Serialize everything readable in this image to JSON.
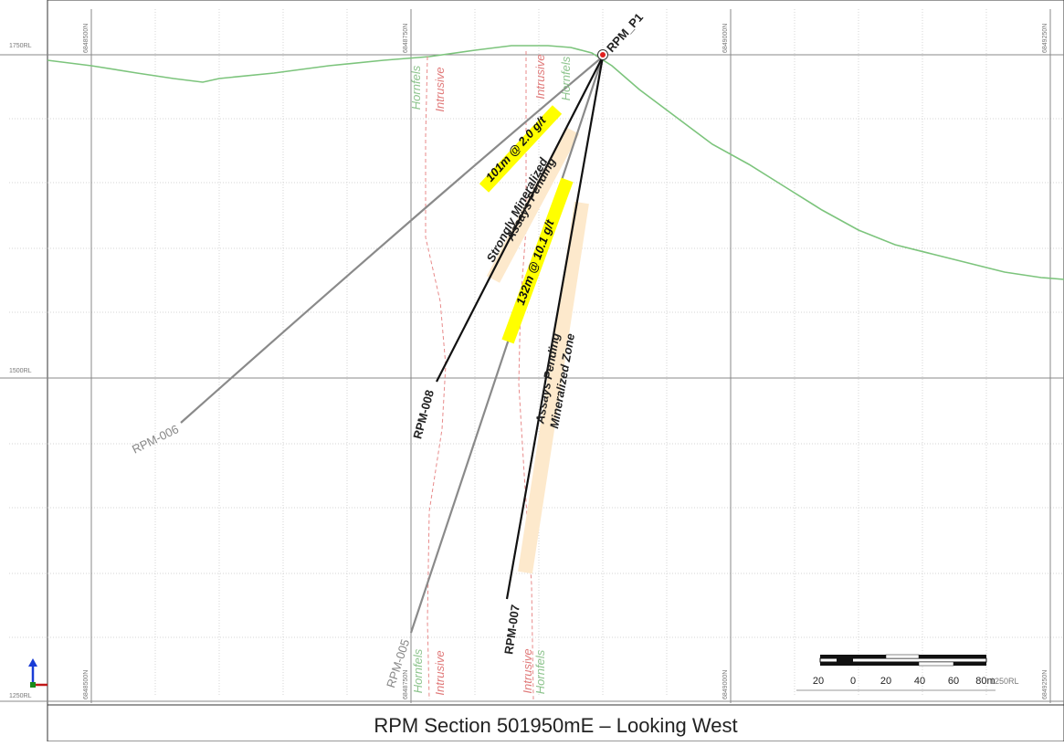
{
  "caption": "RPM Section 501950mE – Looking West",
  "elevation_labels": {
    "top": "1750RL",
    "mid": "1500RL",
    "bottom": "1250RL"
  },
  "northing_labels": [
    "6848500N",
    "6848750N",
    "6849000N",
    "6849250N"
  ],
  "collar": "RPM_P1",
  "holes": {
    "rpm_006": "RPM-006",
    "rpm_008": "RPM-008",
    "rpm_007": "RPM-007",
    "rpm_005": "RPM-005"
  },
  "lithology": {
    "hornfels": "Hornfels",
    "intrusive": "Intrusive"
  },
  "intervals": {
    "rpm_008": "101m @ 2.0 g/t",
    "rpm_007": "132m @ 10.1 g/t"
  },
  "zones": {
    "rpm_008_line1": "Strongly Mineralized",
    "rpm_008_line2": "Assays Pending",
    "rpm_007_line1": "Assays Pending",
    "rpm_007_line2": "Mineralized Zone"
  },
  "scale_bar": {
    "ticks": [
      "20",
      "0",
      "20",
      "40",
      "60",
      "80m"
    ]
  },
  "right_axis_label": "1250RL",
  "colors": {
    "topography": "#7cc47c",
    "intrusive_contact": "#e88a8a",
    "highlight": "#ffff00",
    "mineralized_zone": "#fde9cc",
    "drill_trace_black": "#111111",
    "drill_trace_grey": "#8a8a8a"
  }
}
